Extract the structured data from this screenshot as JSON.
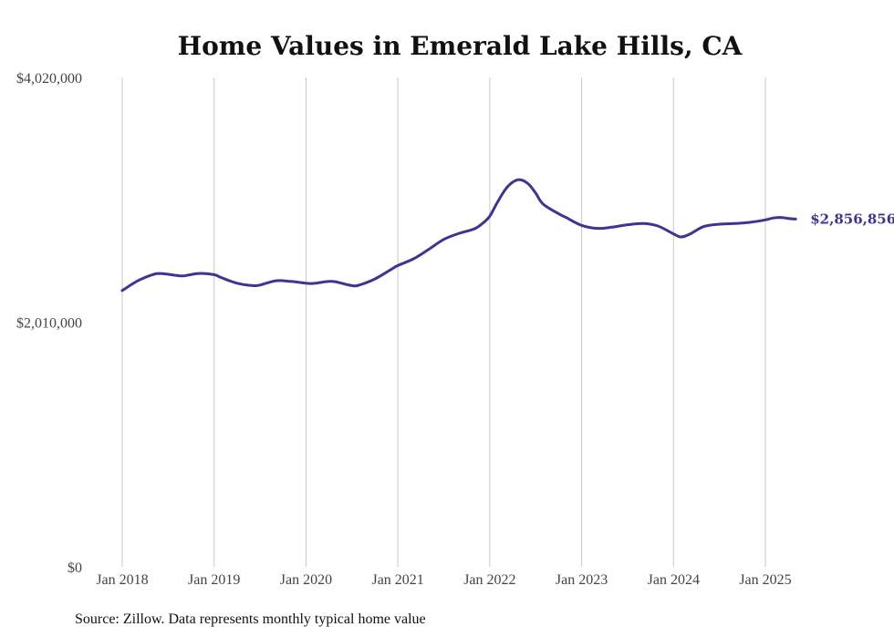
{
  "chart_data": {
    "type": "line",
    "title": "Home Values in Emerald Lake Hills, CA",
    "xlabel": "",
    "ylabel": "",
    "source": "Source: Zillow. Data represents monthly typical home value",
    "line_color": "#3d3590",
    "y_ticks": [
      {
        "value": 4020000,
        "label": "$4,020,000"
      },
      {
        "value": 2010000,
        "label": "$2,010,000"
      },
      {
        "value": 0,
        "label": "$0"
      }
    ],
    "x_ticks": [
      {
        "value": 2018.0,
        "label": "Jan 2018"
      },
      {
        "value": 2019.0,
        "label": "Jan 2019"
      },
      {
        "value": 2020.0,
        "label": "Jan 2020"
      },
      {
        "value": 2021.0,
        "label": "Jan 2021"
      },
      {
        "value": 2022.0,
        "label": "Jan 2022"
      },
      {
        "value": 2023.0,
        "label": "Jan 2023"
      },
      {
        "value": 2024.0,
        "label": "Jan 2024"
      },
      {
        "value": 2025.0,
        "label": "Jan 2025"
      }
    ],
    "xlim": [
      2018.0,
      2025.5
    ],
    "ylim": [
      0,
      4020000
    ],
    "grid": "vertical",
    "end_label": "$2,856,856",
    "series": [
      {
        "x": [
          2018.0,
          2018.17,
          2018.33,
          2018.42,
          2018.58,
          2018.67,
          2018.83,
          2019.0,
          2019.08,
          2019.25,
          2019.42,
          2019.5,
          2019.67,
          2019.83,
          2020.0,
          2020.08,
          2020.25,
          2020.33,
          2020.5,
          2020.58,
          2020.75,
          2020.92,
          2021.0,
          2021.17,
          2021.33,
          2021.5,
          2021.67,
          2021.83,
          2021.92,
          2022.0,
          2022.08,
          2022.17,
          2022.25,
          2022.33,
          2022.42,
          2022.5,
          2022.58,
          2022.75,
          2022.83,
          2023.0,
          2023.17,
          2023.33,
          2023.5,
          2023.67,
          2023.83,
          2024.0,
          2024.08,
          2024.17,
          2024.33,
          2024.5,
          2024.67,
          2024.83,
          2025.0,
          2025.08,
          2025.17,
          2025.25,
          2025.33
        ],
        "y": [
          2270000,
          2350000,
          2400000,
          2410000,
          2395000,
          2390000,
          2410000,
          2400000,
          2375000,
          2330000,
          2310000,
          2315000,
          2350000,
          2345000,
          2330000,
          2328000,
          2345000,
          2340000,
          2310000,
          2315000,
          2365000,
          2440000,
          2475000,
          2530000,
          2605000,
          2690000,
          2740000,
          2775000,
          2820000,
          2880000,
          2990000,
          3100000,
          3160000,
          3180000,
          3145000,
          3070000,
          2980000,
          2900000,
          2870000,
          2805000,
          2780000,
          2790000,
          2810000,
          2820000,
          2800000,
          2735000,
          2710000,
          2730000,
          2795000,
          2815000,
          2820000,
          2830000,
          2850000,
          2865000,
          2870000,
          2862000,
          2856856
        ]
      }
    ]
  }
}
